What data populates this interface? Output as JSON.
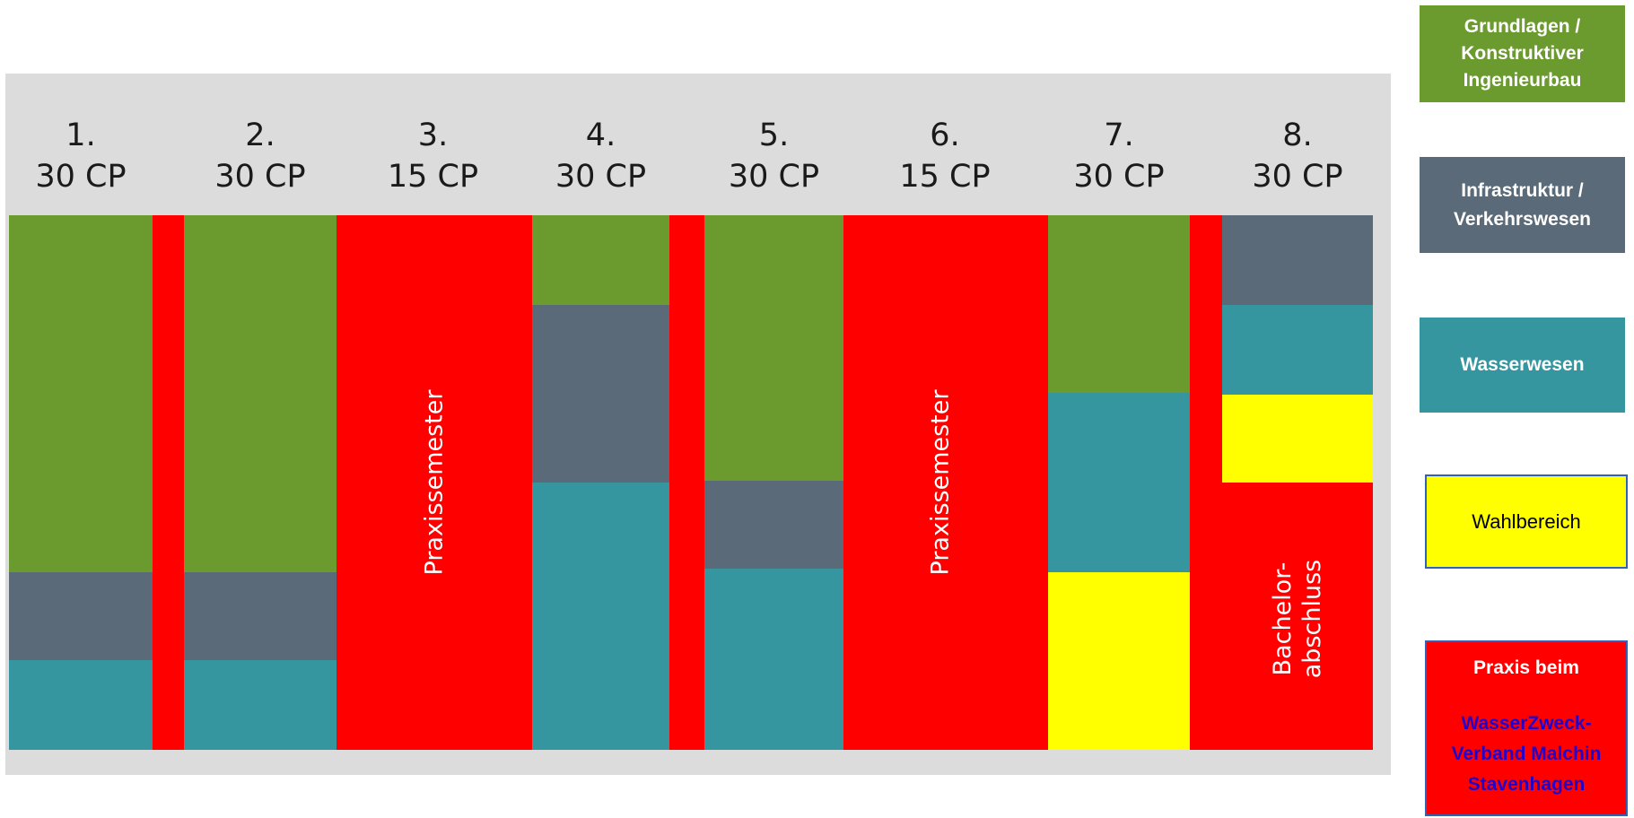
{
  "semesters": [
    {
      "number": "1.",
      "cp": "30 CP"
    },
    {
      "number": "2.",
      "cp": "30 CP"
    },
    {
      "number": "3.",
      "cp": "15 CP"
    },
    {
      "number": "4.",
      "cp": "30 CP"
    },
    {
      "number": "5.",
      "cp": "30 CP"
    },
    {
      "number": "6.",
      "cp": "15 CP"
    },
    {
      "number": "7.",
      "cp": "30 CP"
    },
    {
      "number": "8.",
      "cp": "30 CP"
    }
  ],
  "colors": {
    "grundlagen": "#6b9a2e",
    "infrastruktur": "#5a6a78",
    "wasser": "#3596a0",
    "wahl": "#ffff00",
    "praxis": "#ff0000",
    "panel": "#dcdcdc",
    "link_text": "#2200cc"
  },
  "column_labels": {
    "praxissemester_3": "Praxissemester",
    "praxissemester_6": "Praxissemester",
    "bachelor_line1": "Bachelor-",
    "bachelor_line2": "abschluss"
  },
  "legend": [
    {
      "key": "grundlagen",
      "lines": [
        "Grundlagen /",
        "Konstruktiver",
        "Ingenieurbau"
      ]
    },
    {
      "key": "infrastruktur",
      "lines": [
        "Infrastruktur /",
        "Verkehrswesen"
      ]
    },
    {
      "key": "wasser",
      "lines": [
        "Wasserwesen"
      ]
    },
    {
      "key": "wahl",
      "lines": [
        "Wahlbereich"
      ]
    },
    {
      "key": "praxis",
      "title": "Praxis beim",
      "org_lines": [
        "WasserZweck-",
        "Verband Malchin",
        "Stavenhagen"
      ]
    }
  ]
}
